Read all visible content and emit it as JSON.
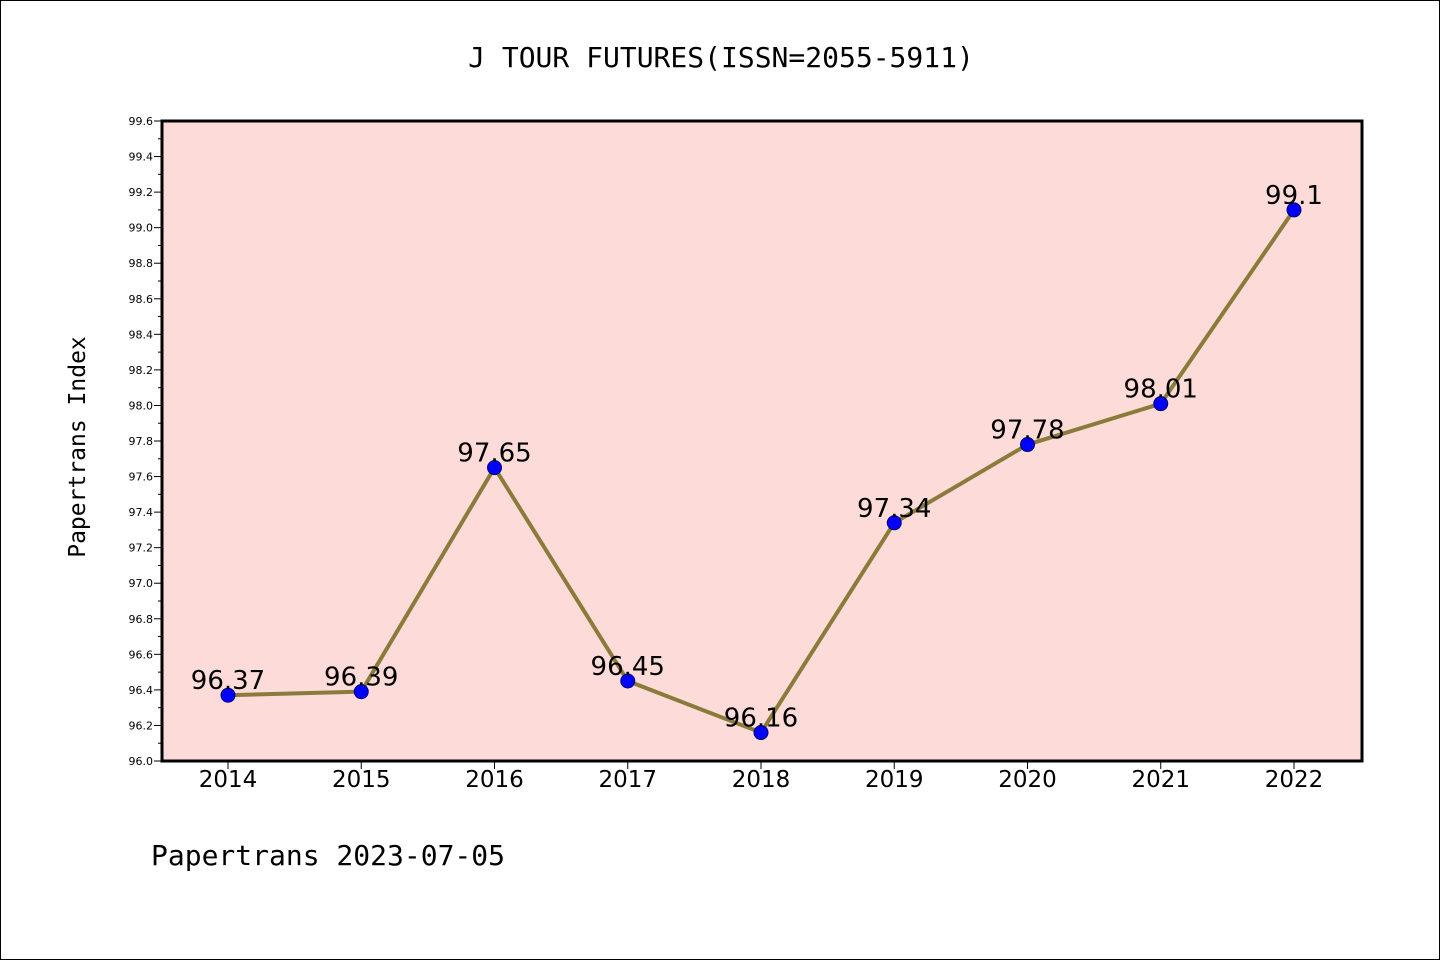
{
  "chart_data": {
    "type": "line",
    "title": "J TOUR FUTURES(ISSN=2055-5911)",
    "xlabel": "",
    "ylabel": "Papertrans Index",
    "categories": [
      "2014",
      "2015",
      "2016",
      "2017",
      "2018",
      "2019",
      "2020",
      "2021",
      "2022"
    ],
    "series": [
      {
        "values": [
          96.37,
          96.39,
          97.65,
          96.45,
          96.16,
          97.34,
          97.78,
          98.01,
          99.1
        ],
        "labels": [
          "96.37",
          "96.39",
          "97.65",
          "96.45",
          "96.16",
          "97.34",
          "97.78",
          "98.01",
          "99.1"
        ]
      }
    ],
    "ylim": [
      96.0,
      99.6
    ],
    "yticks": [
      "96.0",
      "96.2",
      "96.4",
      "96.6",
      "96.8",
      "97.0",
      "97.2",
      "97.4",
      "97.6",
      "97.8",
      "98.0",
      "98.2",
      "98.4",
      "98.6",
      "98.8",
      "99.0",
      "99.2",
      "99.4",
      "99.6"
    ],
    "grid": false,
    "colors": {
      "plot_background": "#fddbd8",
      "line": "#8b7b3b",
      "marker": "#0000ff"
    }
  },
  "footer": {
    "text": "Papertrans 2023-07-05"
  }
}
